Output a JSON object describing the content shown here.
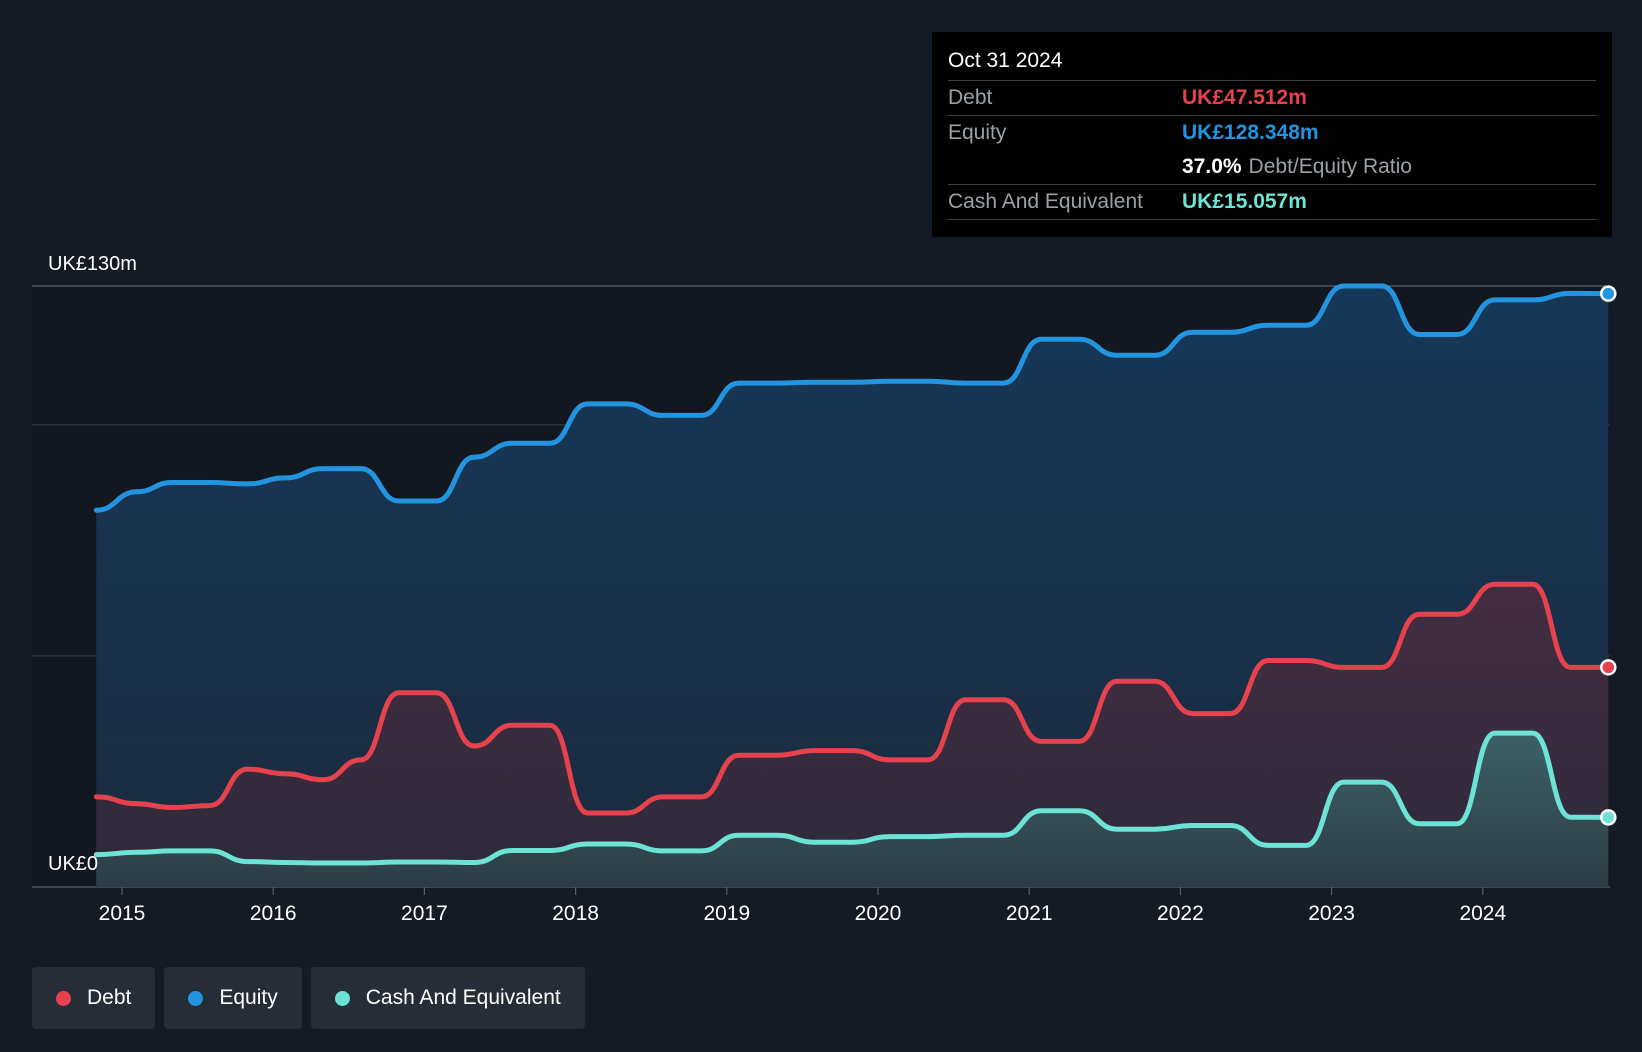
{
  "tooltip": {
    "date": "Oct 31 2024",
    "debt_label": "Debt",
    "debt_value": "UK£47.512m",
    "equity_label": "Equity",
    "equity_value": "UK£128.348m",
    "ratio_value": "37.0%",
    "ratio_label": "Debt/Equity Ratio",
    "cash_label": "Cash And Equivalent",
    "cash_value": "UK£15.057m"
  },
  "legend": [
    {
      "label": "Debt",
      "color": "#e5424d"
    },
    {
      "label": "Equity",
      "color": "#2394df"
    },
    {
      "label": "Cash And Equivalent",
      "color": "#6ce3d4"
    }
  ],
  "chart_data": {
    "type": "area",
    "title": "",
    "xlabel": "",
    "ylabel": "",
    "ylim": [
      0,
      130
    ],
    "y_tick_labels": {
      "top": "UK£130m",
      "bottom": "UK£0"
    },
    "xlim": [
      2014.6,
      2024.83
    ],
    "x_tick_labels": [
      "2015",
      "2016",
      "2017",
      "2018",
      "2019",
      "2020",
      "2021",
      "2022",
      "2023",
      "2024"
    ],
    "x_tick_values": [
      2015,
      2016,
      2017,
      2018,
      2019,
      2020,
      2021,
      2022,
      2023,
      2024
    ],
    "grid": "horizontal",
    "legend_position": "bottom-left",
    "series": [
      {
        "name": "Equity",
        "color": "#2394df",
        "points": [
          [
            2014.83,
            81.5
          ],
          [
            2015.1,
            85.5
          ],
          [
            2015.33,
            87.5
          ],
          [
            2015.58,
            87.5
          ],
          [
            2015.83,
            87.2
          ],
          [
            2016.08,
            88.5
          ],
          [
            2016.33,
            90.5
          ],
          [
            2016.58,
            90.5
          ],
          [
            2016.83,
            83.5
          ],
          [
            2017.08,
            83.5
          ],
          [
            2017.33,
            93.0
          ],
          [
            2017.58,
            96.0
          ],
          [
            2017.83,
            96.0
          ],
          [
            2018.08,
            104.5
          ],
          [
            2018.33,
            104.5
          ],
          [
            2018.58,
            102.0
          ],
          [
            2018.83,
            102.0
          ],
          [
            2019.08,
            109.0
          ],
          [
            2019.33,
            109.0
          ],
          [
            2019.58,
            109.2
          ],
          [
            2019.83,
            109.2
          ],
          [
            2020.08,
            109.4
          ],
          [
            2020.33,
            109.4
          ],
          [
            2020.58,
            109.0
          ],
          [
            2020.83,
            109.0
          ],
          [
            2021.08,
            118.5
          ],
          [
            2021.33,
            118.5
          ],
          [
            2021.58,
            115.0
          ],
          [
            2021.83,
            115.0
          ],
          [
            2022.08,
            120.0
          ],
          [
            2022.33,
            120.0
          ],
          [
            2022.58,
            121.5
          ],
          [
            2022.83,
            121.5
          ],
          [
            2023.08,
            130.0
          ],
          [
            2023.33,
            130.0
          ],
          [
            2023.58,
            119.5
          ],
          [
            2023.83,
            119.5
          ],
          [
            2024.08,
            127.0
          ],
          [
            2024.33,
            127.0
          ],
          [
            2024.58,
            128.4
          ],
          [
            2024.83,
            128.348
          ]
        ]
      },
      {
        "name": "Debt",
        "color": "#e5424d",
        "points": [
          [
            2014.83,
            19.5
          ],
          [
            2015.1,
            18.0
          ],
          [
            2015.33,
            17.2
          ],
          [
            2015.58,
            17.6
          ],
          [
            2015.83,
            25.5
          ],
          [
            2016.08,
            24.5
          ],
          [
            2016.33,
            23.2
          ],
          [
            2016.58,
            27.5
          ],
          [
            2016.83,
            42.0
          ],
          [
            2017.08,
            42.0
          ],
          [
            2017.33,
            30.5
          ],
          [
            2017.58,
            35.0
          ],
          [
            2017.83,
            35.0
          ],
          [
            2018.08,
            16.0
          ],
          [
            2018.33,
            16.0
          ],
          [
            2018.58,
            19.5
          ],
          [
            2018.83,
            19.5
          ],
          [
            2019.08,
            28.5
          ],
          [
            2019.33,
            28.5
          ],
          [
            2019.58,
            29.5
          ],
          [
            2019.83,
            29.5
          ],
          [
            2020.08,
            27.5
          ],
          [
            2020.33,
            27.5
          ],
          [
            2020.58,
            40.5
          ],
          [
            2020.83,
            40.5
          ],
          [
            2021.08,
            31.5
          ],
          [
            2021.33,
            31.5
          ],
          [
            2021.58,
            44.5
          ],
          [
            2021.83,
            44.5
          ],
          [
            2022.08,
            37.5
          ],
          [
            2022.33,
            37.5
          ],
          [
            2022.58,
            49.0
          ],
          [
            2022.83,
            49.0
          ],
          [
            2023.08,
            47.5
          ],
          [
            2023.33,
            47.5
          ],
          [
            2023.58,
            59.0
          ],
          [
            2023.83,
            59.0
          ],
          [
            2024.08,
            65.5
          ],
          [
            2024.33,
            65.5
          ],
          [
            2024.58,
            47.5
          ],
          [
            2024.83,
            47.512
          ]
        ]
      },
      {
        "name": "Cash And Equivalent",
        "color": "#6ce3d4",
        "points": [
          [
            2014.83,
            7.0
          ],
          [
            2015.1,
            7.5
          ],
          [
            2015.33,
            7.8
          ],
          [
            2015.58,
            7.8
          ],
          [
            2015.83,
            5.5
          ],
          [
            2016.08,
            5.3
          ],
          [
            2016.33,
            5.2
          ],
          [
            2016.58,
            5.2
          ],
          [
            2016.83,
            5.4
          ],
          [
            2017.08,
            5.4
          ],
          [
            2017.33,
            5.3
          ],
          [
            2017.58,
            7.9
          ],
          [
            2017.83,
            7.9
          ],
          [
            2018.08,
            9.3
          ],
          [
            2018.33,
            9.3
          ],
          [
            2018.58,
            7.8
          ],
          [
            2018.83,
            7.8
          ],
          [
            2019.08,
            11.2
          ],
          [
            2019.33,
            11.2
          ],
          [
            2019.58,
            9.7
          ],
          [
            2019.83,
            9.7
          ],
          [
            2020.08,
            10.9
          ],
          [
            2020.33,
            10.9
          ],
          [
            2020.58,
            11.2
          ],
          [
            2020.83,
            11.2
          ],
          [
            2021.08,
            16.5
          ],
          [
            2021.33,
            16.5
          ],
          [
            2021.58,
            12.5
          ],
          [
            2021.83,
            12.5
          ],
          [
            2022.08,
            13.3
          ],
          [
            2022.33,
            13.3
          ],
          [
            2022.58,
            9.0
          ],
          [
            2022.83,
            9.0
          ],
          [
            2023.08,
            22.7
          ],
          [
            2023.33,
            22.7
          ],
          [
            2023.58,
            13.7
          ],
          [
            2023.83,
            13.7
          ],
          [
            2024.08,
            33.3
          ],
          [
            2024.33,
            33.3
          ],
          [
            2024.58,
            15.1
          ],
          [
            2024.83,
            15.057
          ]
        ]
      }
    ]
  }
}
